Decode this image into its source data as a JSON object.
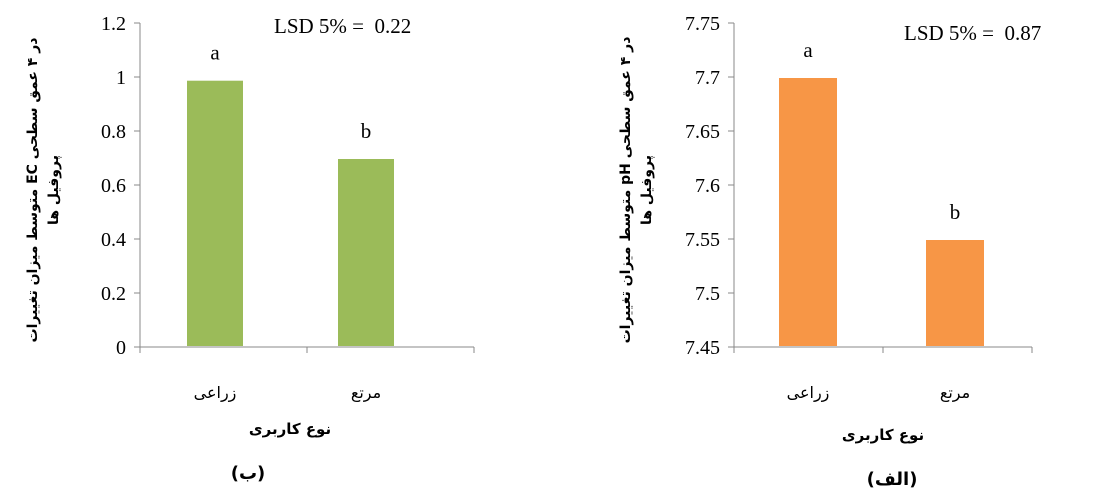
{
  "chart_data": [
    {
      "type": "bar",
      "categories": [
        "زراعی",
        "مرتع"
      ],
      "values": [
        0.99,
        0.7
      ],
      "ylim": [
        0,
        1.2
      ],
      "yticks": [
        "0",
        "0.2",
        "0.4",
        "0.6",
        "0.8",
        "1",
        "1.2"
      ],
      "bar_letters": [
        "a",
        "b"
      ],
      "annotation": "LSD 5% =  0.22",
      "ylabel_line1": "متوسط میزان تغییرات EC در ۴ عمق سطحی",
      "ylabel_line2": "پروفیل ها",
      "xlabel": "نوع کاربری",
      "caption": "(ب)",
      "color": "#9bbb59",
      "grid": false
    },
    {
      "type": "bar",
      "categories": [
        "زراعی",
        "مرتع"
      ],
      "values": [
        7.7,
        7.55
      ],
      "ylim": [
        7.45,
        7.75
      ],
      "yticks": [
        "7.45",
        "7.5",
        "7.55",
        "7.6",
        "7.65",
        "7.7",
        "7.75"
      ],
      "bar_letters": [
        "a",
        "b"
      ],
      "annotation": "LSD 5% =  0.87",
      "ylabel_line1": "متوسط میزان تغییرات pH در ۴ عمق سطحی",
      "ylabel_line2": "پروفیل ها",
      "xlabel": "نوع کاربری",
      "caption": "(الف)",
      "color": "#f79646",
      "grid": false
    }
  ]
}
